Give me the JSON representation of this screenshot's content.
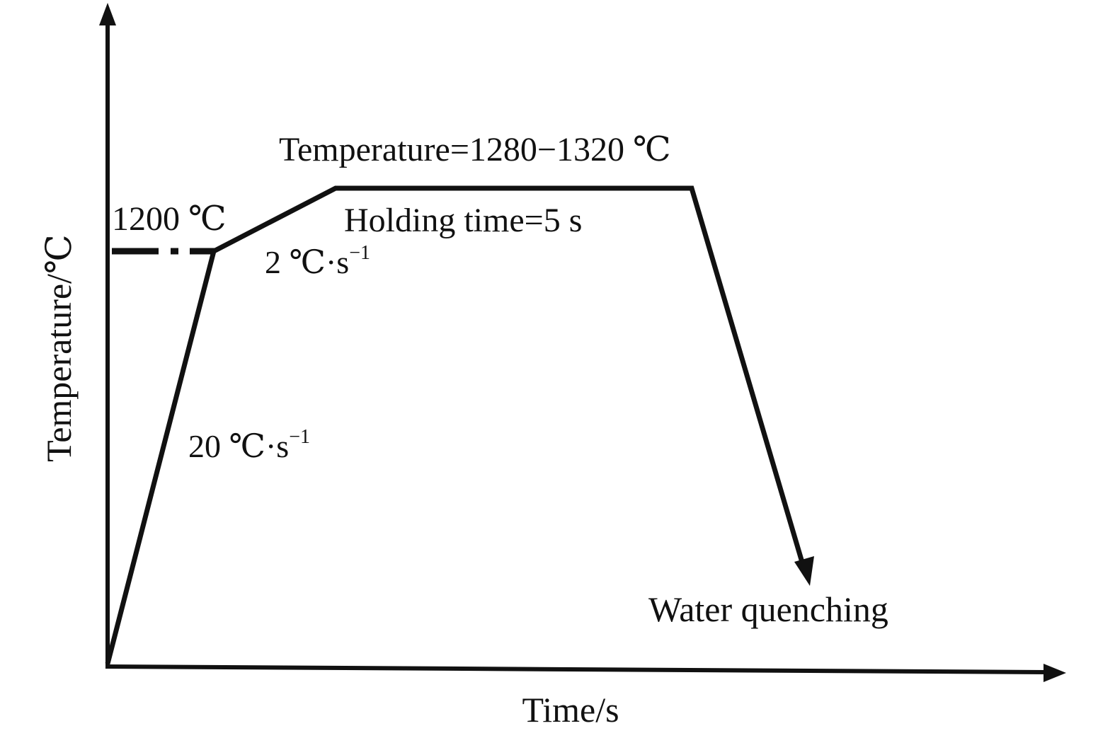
{
  "axes": {
    "x_label": "Time/s",
    "y_label": "Temperature/℃"
  },
  "annotations": {
    "preheat_temp": "1200 ℃",
    "heating_rate_fast_value": "20 ℃·s",
    "heating_rate_fast_exp": "−1",
    "heating_rate_slow_value": "2 ℃·s",
    "heating_rate_slow_exp": "−1",
    "peak_temperature": "Temperature=1280−1320 ℃",
    "holding_time": "Holding time=5 s",
    "quench": "Water quenching"
  },
  "colors": {
    "line": "#111111",
    "background": "#ffffff"
  }
}
